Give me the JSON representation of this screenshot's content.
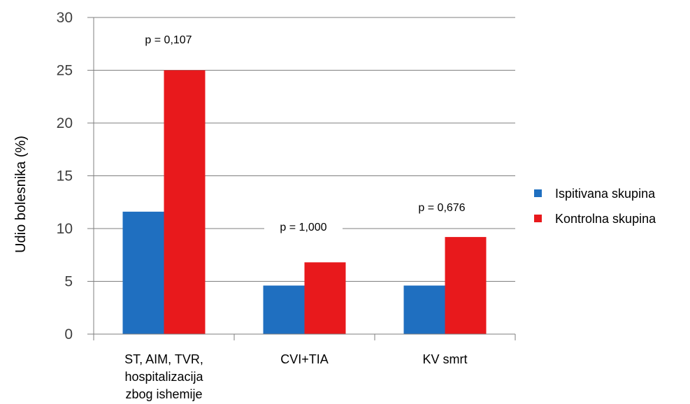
{
  "chart_data": {
    "type": "bar",
    "categories": [
      [
        "ST, AIM, TVR,",
        "hospitalizacija",
        "zbog ishemije"
      ],
      [
        "CVI+TIA"
      ],
      [
        "KV smrt"
      ]
    ],
    "series": [
      {
        "name": "Ispitivana skupina",
        "values": [
          11.6,
          4.6,
          4.6
        ],
        "color": "#1f6fc0"
      },
      {
        "name": "Kontrolna skupina",
        "values": [
          25.0,
          6.8,
          9.2
        ],
        "color": "#e8191c"
      }
    ],
    "annotations": [
      "p = 0,107",
      "p = 1,000",
      "p = 0,676"
    ],
    "ylabel": "Udio bolesnika (%)",
    "ylim": [
      0,
      30
    ],
    "yticks": [
      0,
      5,
      10,
      15,
      20,
      25,
      30
    ],
    "grid": true,
    "legend_position": "right"
  }
}
